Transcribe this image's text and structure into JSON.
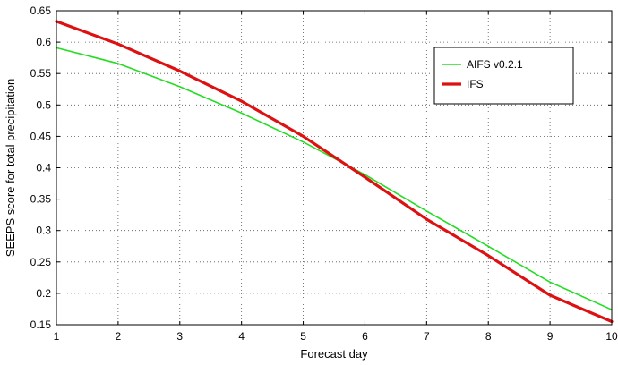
{
  "chart_data": {
    "type": "line",
    "xlabel": "Forecast day",
    "ylabel": "SEEPS score for total precipitation",
    "x": [
      1,
      2,
      3,
      4,
      5,
      6,
      7,
      8,
      9,
      10
    ],
    "xticks": [
      "1",
      "2",
      "3",
      "4",
      "5",
      "6",
      "7",
      "8",
      "9",
      "10"
    ],
    "yticks": [
      "0.15",
      "0.2",
      "0.25",
      "0.3",
      "0.35",
      "0.4",
      "0.45",
      "0.5",
      "0.55",
      "0.6",
      "0.65"
    ],
    "xlim": [
      1,
      10
    ],
    "ylim": [
      0.15,
      0.65
    ],
    "grid": true,
    "legend_position": "top-right",
    "series": [
      {
        "name": "AIFS v0.2.1",
        "color": "#22dd22",
        "values": [
          0.591,
          0.566,
          0.529,
          0.487,
          0.441,
          0.389,
          0.331,
          0.275,
          0.218,
          0.174
        ]
      },
      {
        "name": "IFS",
        "color": "#dd1111",
        "values": [
          0.633,
          0.597,
          0.554,
          0.506,
          0.45,
          0.385,
          0.318,
          0.26,
          0.197,
          0.155
        ]
      }
    ]
  }
}
